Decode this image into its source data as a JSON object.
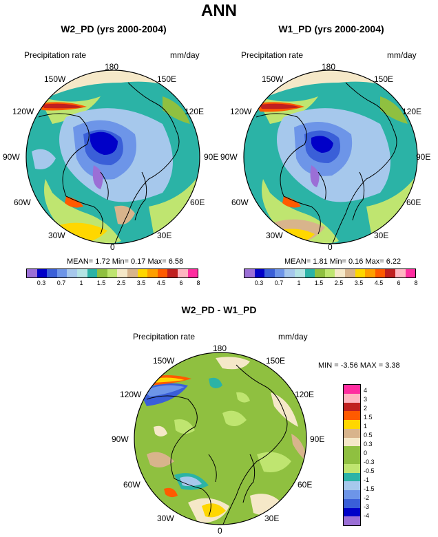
{
  "page_title": "ANN",
  "panels": [
    {
      "title": "W2_PD (yrs 2000-2004)",
      "field_label": "Precipitation rate",
      "units": "mm/day",
      "stats": {
        "mean_label": "MEAN=",
        "mean": "1.72",
        "min_label": "Min=",
        "min": "0.17",
        "max_label": "Max=",
        "max": "6.58"
      }
    },
    {
      "title": "W1_PD (yrs 2000-2004)",
      "field_label": "Precipitation rate",
      "units": "mm/day",
      "stats": {
        "mean_label": "MEAN=",
        "mean": "1.81",
        "min_label": "Min=",
        "min": "0.16",
        "max_label": "Max=",
        "max": "6.22"
      }
    }
  ],
  "longitude_labels": [
    "180",
    "150E",
    "120E",
    "90E",
    "60E",
    "30E",
    "0",
    "30W",
    "60W",
    "90W",
    "120W",
    "150W"
  ],
  "colorbar": {
    "tick_labels": [
      "0.3",
      "0.7",
      "1",
      "1.5",
      "2.5",
      "3.5",
      "4.5",
      "6",
      "8"
    ],
    "colors": [
      "#9b6fd6",
      "#0000c8",
      "#3a5fd8",
      "#6d95e8",
      "#a6c8ec",
      "#b4e4e4",
      "#2bb3a6",
      "#8fc040",
      "#bfe570",
      "#f5e8c8",
      "#d8b48c",
      "#ffd700",
      "#ff9f00",
      "#ff5a00",
      "#c02020",
      "#ffb6c1",
      "#ff2da0"
    ]
  },
  "difference_panel": {
    "title": "W2_PD - W1_PD",
    "field_label": "Precipitation rate",
    "units": "mm/day",
    "min_label": "MIN =",
    "min": "-3.56",
    "max_label": "MAX =",
    "max": "3.38",
    "colorbar": {
      "tick_labels": [
        "4",
        "3",
        "2",
        "1.5",
        "1",
        "0.5",
        "0.3",
        "0",
        "-0.3",
        "-0.5",
        "-1",
        "-1.5",
        "-2",
        "-3",
        "-4"
      ],
      "colors": [
        "#ff2da0",
        "#ffb6c1",
        "#c02020",
        "#ff5a00",
        "#ffd700",
        "#d8b48c",
        "#f5e8c8",
        "#8fc040",
        "#8fc040",
        "#bfe570",
        "#2bb3a6",
        "#a6c8ec",
        "#6d95e8",
        "#3a5fd8",
        "#0000c8",
        "#9b6fd6"
      ]
    }
  }
}
